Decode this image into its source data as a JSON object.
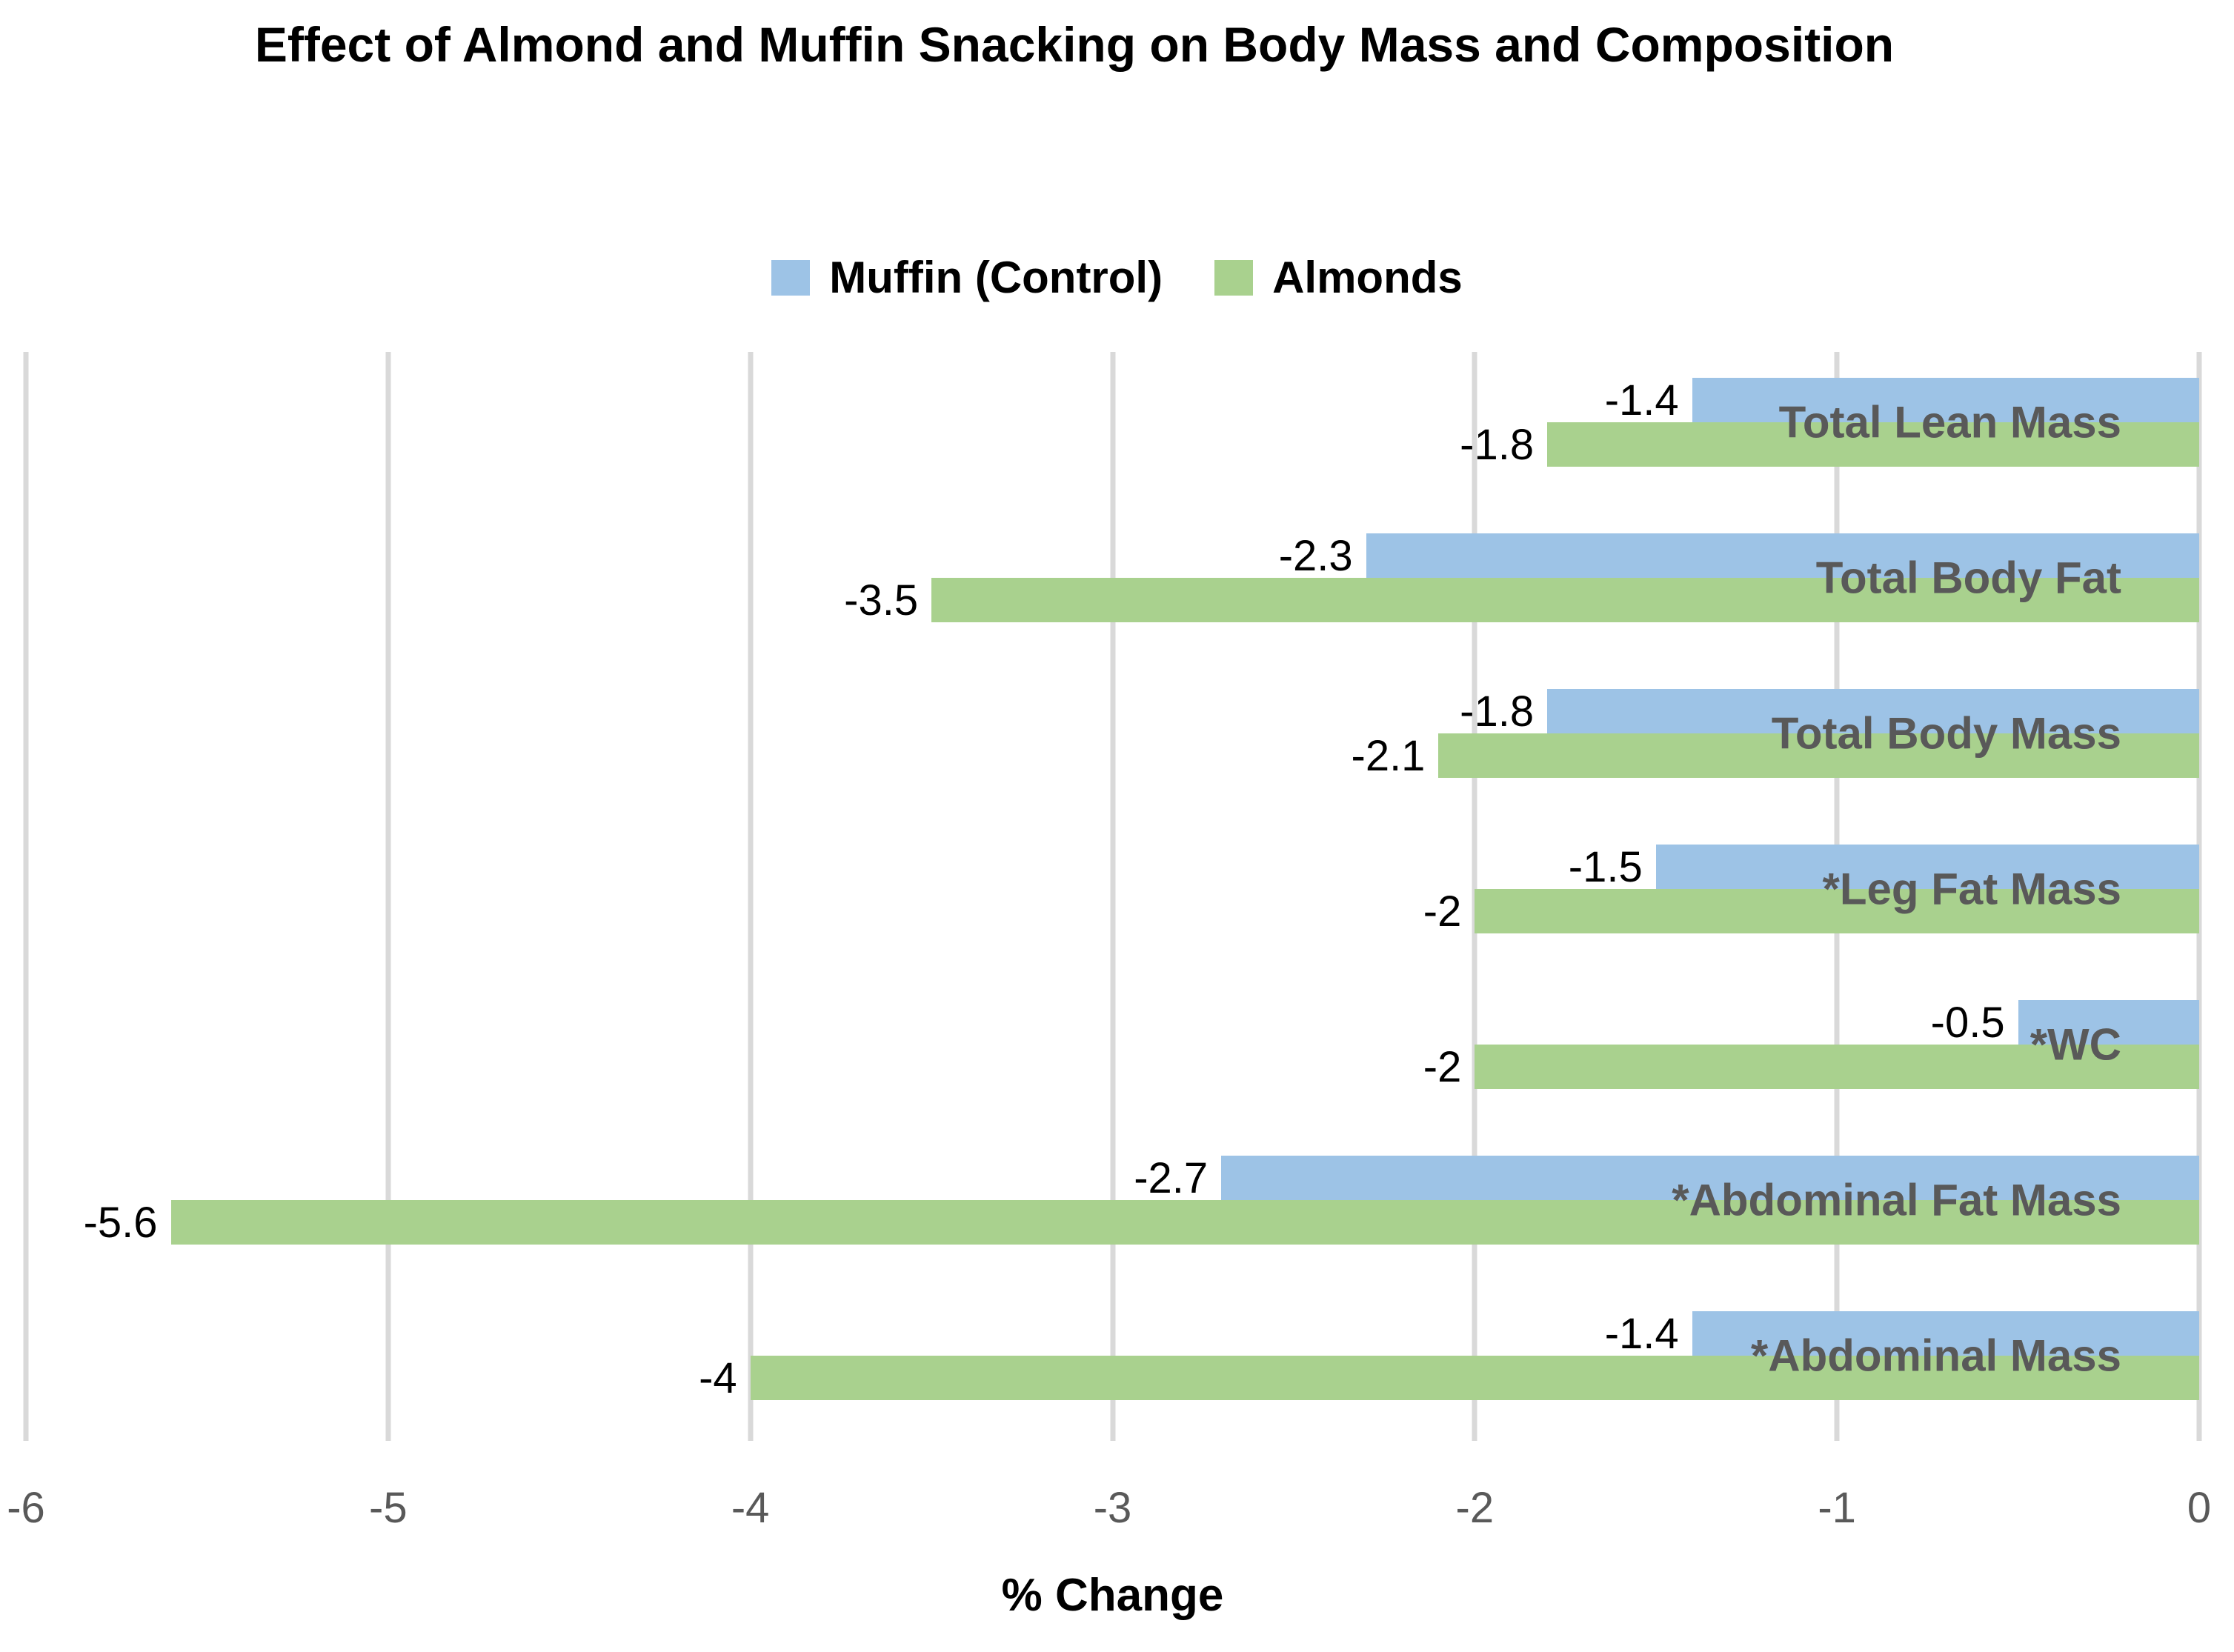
{
  "title": "Effect of Almond and Muffin Snacking on Body Mass and Composition",
  "legend": {
    "items": [
      {
        "label": "Muffin (Control)",
        "color": "#9DC3E6"
      },
      {
        "label": "Almonds",
        "color": "#A9D18E"
      }
    ],
    "position": "top-center"
  },
  "chart_data": {
    "type": "bar",
    "orientation": "horizontal",
    "title": "Effect of Almond and Muffin Snacking on Body Mass and Composition",
    "categories": [
      "Total Lean Mass",
      "Total Body Fat",
      "Total Body Mass",
      "*Leg Fat Mass",
      "*WC",
      "*Abdominal Fat Mass",
      "*Abdominal Mass"
    ],
    "series": [
      {
        "name": "Muffin (Control)",
        "color": "#9DC3E6",
        "values": [
          -1.4,
          -2.3,
          -1.8,
          -1.5,
          -0.5,
          -2.7,
          -1.4
        ]
      },
      {
        "name": "Almonds",
        "color": "#A9D18E",
        "values": [
          -1.8,
          -3.5,
          -2.1,
          -2,
          -2,
          -5.6,
          -4
        ]
      }
    ],
    "data_labels_shown": true,
    "xlabel": "% Change",
    "ylabel": "",
    "xlim": [
      -6,
      0
    ],
    "xticks": [
      "-6",
      "-5",
      "-4",
      "-3",
      "-2",
      "-1",
      "0"
    ],
    "grid": true,
    "bars_anchored_at": "right",
    "colors": {
      "gridline": "#D9D9D9",
      "category_label": "#595959",
      "tick_label": "#595959",
      "data_label": "#000000",
      "title": "#000000"
    }
  }
}
